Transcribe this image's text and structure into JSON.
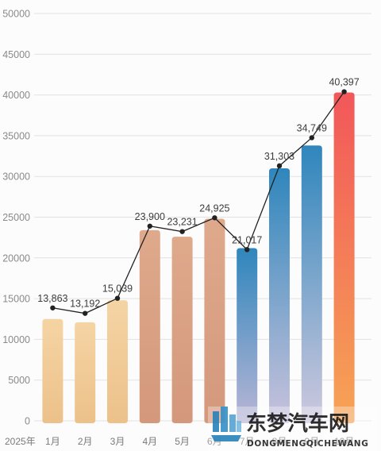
{
  "chart_data": {
    "type": "bar",
    "title": "",
    "xlabel": "",
    "ylabel": "",
    "year_label": "2025年",
    "categories": [
      "1月",
      "2月",
      "3月",
      "4月",
      "5月",
      "6月",
      "7月",
      "8月",
      "9月",
      "10月"
    ],
    "series": [
      {
        "kind": "bar",
        "values": [
          12500,
          12100,
          14800,
          23400,
          22600,
          24800,
          21200,
          31000,
          33800,
          40300
        ],
        "colors": [
          [
            "#f5d4a4",
            "#ecc18a"
          ],
          [
            "#f5d4a4",
            "#ecc18a"
          ],
          [
            "#f5d4a4",
            "#ecc18a"
          ],
          [
            "#dfa98c",
            "#d4987c"
          ],
          [
            "#dfa98c",
            "#d4987c"
          ],
          [
            "#dfa98c",
            "#d4987c"
          ],
          [
            "#2f86bc",
            "#b9b6d6"
          ],
          [
            "#2f86bc",
            "#c9c3dc"
          ],
          [
            "#2f86bc",
            "#cfc9de"
          ],
          [
            "#f2575a",
            "#f6a455"
          ]
        ]
      },
      {
        "kind": "line",
        "values": [
          13863,
          13192,
          15039,
          23900,
          23231,
          24925,
          21017,
          31303,
          34749,
          40397
        ],
        "labels": [
          "13,863",
          "13,192",
          "15,039",
          "23,900",
          "23,231",
          "24,925",
          "21,017",
          "31,303",
          "34,749",
          "40,397"
        ],
        "color": "#222222"
      }
    ],
    "ylim": [
      0,
      50000
    ],
    "yticks": [
      "0",
      "5000",
      "10000",
      "15000",
      "20000",
      "25000",
      "30000",
      "35000",
      "40000",
      "45000",
      "50000"
    ],
    "grid": true,
    "legend": "none"
  },
  "watermark": {
    "title": "东梦汽车网",
    "subtitle": "DONGMENGQICHEWANG"
  }
}
